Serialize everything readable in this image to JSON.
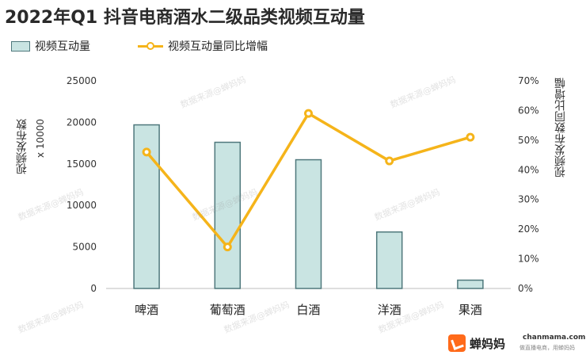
{
  "title": "2022年Q1 抖音电商酒水二级品类视频互动量",
  "legend": {
    "bar_label": "视频互动量",
    "line_label": "视频互动量同比增幅"
  },
  "axis": {
    "left_title": "视频发布数",
    "left_scale_note": "x 10000",
    "right_title": "视频发布数同比增幅"
  },
  "colors": {
    "bar_fill": "#c9e4e2",
    "bar_stroke": "#4f787c",
    "line": "#f5b41a",
    "grid": "#e6e6e6"
  },
  "watermark": "数据来源@蝉妈妈",
  "footer": {
    "brand": "蝉妈妈",
    "site": "chanmama.com",
    "slogan": "做直播电商，用蝉妈妈"
  },
  "chart_data": {
    "type": "bar",
    "title": "2022年Q1 抖音电商酒水二级品类视频互动量",
    "categories": [
      "啤酒",
      "葡萄酒",
      "白酒",
      "洋酒",
      "果酒"
    ],
    "series": [
      {
        "name": "视频互动量",
        "type": "bar",
        "axis": "left",
        "values": [
          19700,
          17600,
          15500,
          6800,
          1000
        ]
      },
      {
        "name": "视频互动量同比增幅",
        "type": "line",
        "axis": "right",
        "values": [
          0.46,
          0.14,
          0.59,
          0.43,
          0.51
        ]
      }
    ],
    "ylabel": "视频发布数",
    "y2label": "视频发布数同比增幅",
    "ylim": [
      0,
      25000
    ],
    "y2lim": [
      0,
      0.7
    ],
    "yticks": [
      "0",
      "5000",
      "10000",
      "15000",
      "20000",
      "25000"
    ],
    "y2ticks": [
      "0%",
      "10%",
      "20%",
      "30%",
      "40%",
      "50%",
      "60%",
      "70%"
    ],
    "grid": false,
    "legend": "top-left"
  }
}
